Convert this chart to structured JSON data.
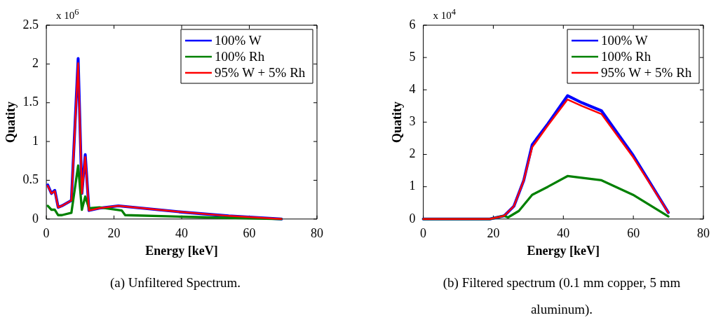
{
  "chart_data": [
    {
      "type": "line",
      "xlabel": "Energy [keV]",
      "ylabel": "Quatity",
      "xlim": [
        0,
        80
      ],
      "xticks": [
        0,
        20,
        40,
        60,
        80
      ],
      "ylim": [
        0,
        2.5
      ],
      "yticks": [
        0,
        0.5,
        1,
        1.5,
        2,
        2.5
      ],
      "grid": false,
      "legend": "top right",
      "marker": "none",
      "line_style": "solid",
      "annotations": [
        "x 10$^{6}$",
        "(a) Unfiltered Spectrum."
      ],
      "series": [
        {
          "name": "100% W",
          "color": "#0000ff",
          "x": [
            0.4,
            1.5,
            2.5,
            3.5,
            4.6,
            7.4,
            9.4,
            10.5,
            11.5,
            12.6,
            15.7,
            21.3,
            26.1,
            40,
            53.9,
            69.5
          ],
          "values": [
            0.44,
            0.33,
            0.37,
            0.15,
            0.17,
            0.24,
            2.07,
            0.33,
            0.83,
            0.11,
            0.14,
            0.17,
            0.15,
            0.09,
            0.04,
            0
          ]
        },
        {
          "name": "100% Rh",
          "color": "#008000",
          "x": [
            0.4,
            1.5,
            2.5,
            3.5,
            4.6,
            7.4,
            9.4,
            10.5,
            11.5,
            12.6,
            15.7,
            22.3,
            23.3,
            40,
            69.5
          ],
          "values": [
            0.17,
            0.12,
            0.12,
            0.05,
            0.05,
            0.08,
            0.69,
            0.12,
            0.29,
            0.14,
            0.15,
            0.11,
            0.05,
            0.03,
            0
          ]
        },
        {
          "name": "95% W + 5% Rh",
          "color": "#ff0000",
          "x": [
            0.4,
            1.5,
            2.5,
            3.5,
            4.6,
            7.4,
            9.4,
            10.5,
            11.5,
            12.6,
            15.7,
            21.3,
            26.1,
            40,
            53.9,
            69.5
          ],
          "values": [
            0.43,
            0.33,
            0.36,
            0.15,
            0.17,
            0.24,
            2.01,
            0.33,
            0.8,
            0.11,
            0.14,
            0.17,
            0.15,
            0.09,
            0.04,
            0
          ]
        }
      ]
    },
    {
      "type": "line",
      "xlabel": "Energy [keV]",
      "ylabel": "Quatity",
      "xlim": [
        0,
        80
      ],
      "xticks": [
        0,
        20,
        40,
        60,
        80
      ],
      "ylim": [
        0,
        6
      ],
      "yticks": [
        0,
        1,
        2,
        3,
        4,
        5,
        6
      ],
      "grid": false,
      "legend": "top right",
      "marker": "none",
      "line_style": "solid",
      "annotations": [
        "x 10$^{4}$",
        "(b) Filtered spectrum (0.1 mm copper, 5 mm aluminum)."
      ],
      "series": [
        {
          "name": "100% W",
          "color": "#0000ff",
          "x": [
            0,
            19,
            23.1,
            25.9,
            28.7,
            31.1,
            35.6,
            41.2,
            45.3,
            50.9,
            59.9,
            70
          ],
          "values": [
            0,
            0,
            0.1,
            0.4,
            1.2,
            2.3,
            2.95,
            3.82,
            3.6,
            3.35,
            1.98,
            0.2
          ]
        },
        {
          "name": "100% Rh",
          "color": "#008000",
          "x": [
            0,
            19,
            23.1,
            24.2,
            27.3,
            31.1,
            35.6,
            41.2,
            50.9,
            59.9,
            70
          ],
          "values": [
            0,
            0,
            0.1,
            0.05,
            0.25,
            0.75,
            1,
            1.33,
            1.2,
            0.75,
            0.08
          ]
        },
        {
          "name": "95% W + 5% Rh",
          "color": "#ff0000",
          "x": [
            0,
            19,
            23.1,
            25.9,
            28.7,
            31.1,
            35.6,
            41.2,
            45.3,
            50.9,
            59.9,
            70
          ],
          "values": [
            0,
            0,
            0.1,
            0.4,
            1.2,
            2.22,
            2.9,
            3.7,
            3.5,
            3.25,
            1.92,
            0.2
          ]
        }
      ]
    }
  ]
}
